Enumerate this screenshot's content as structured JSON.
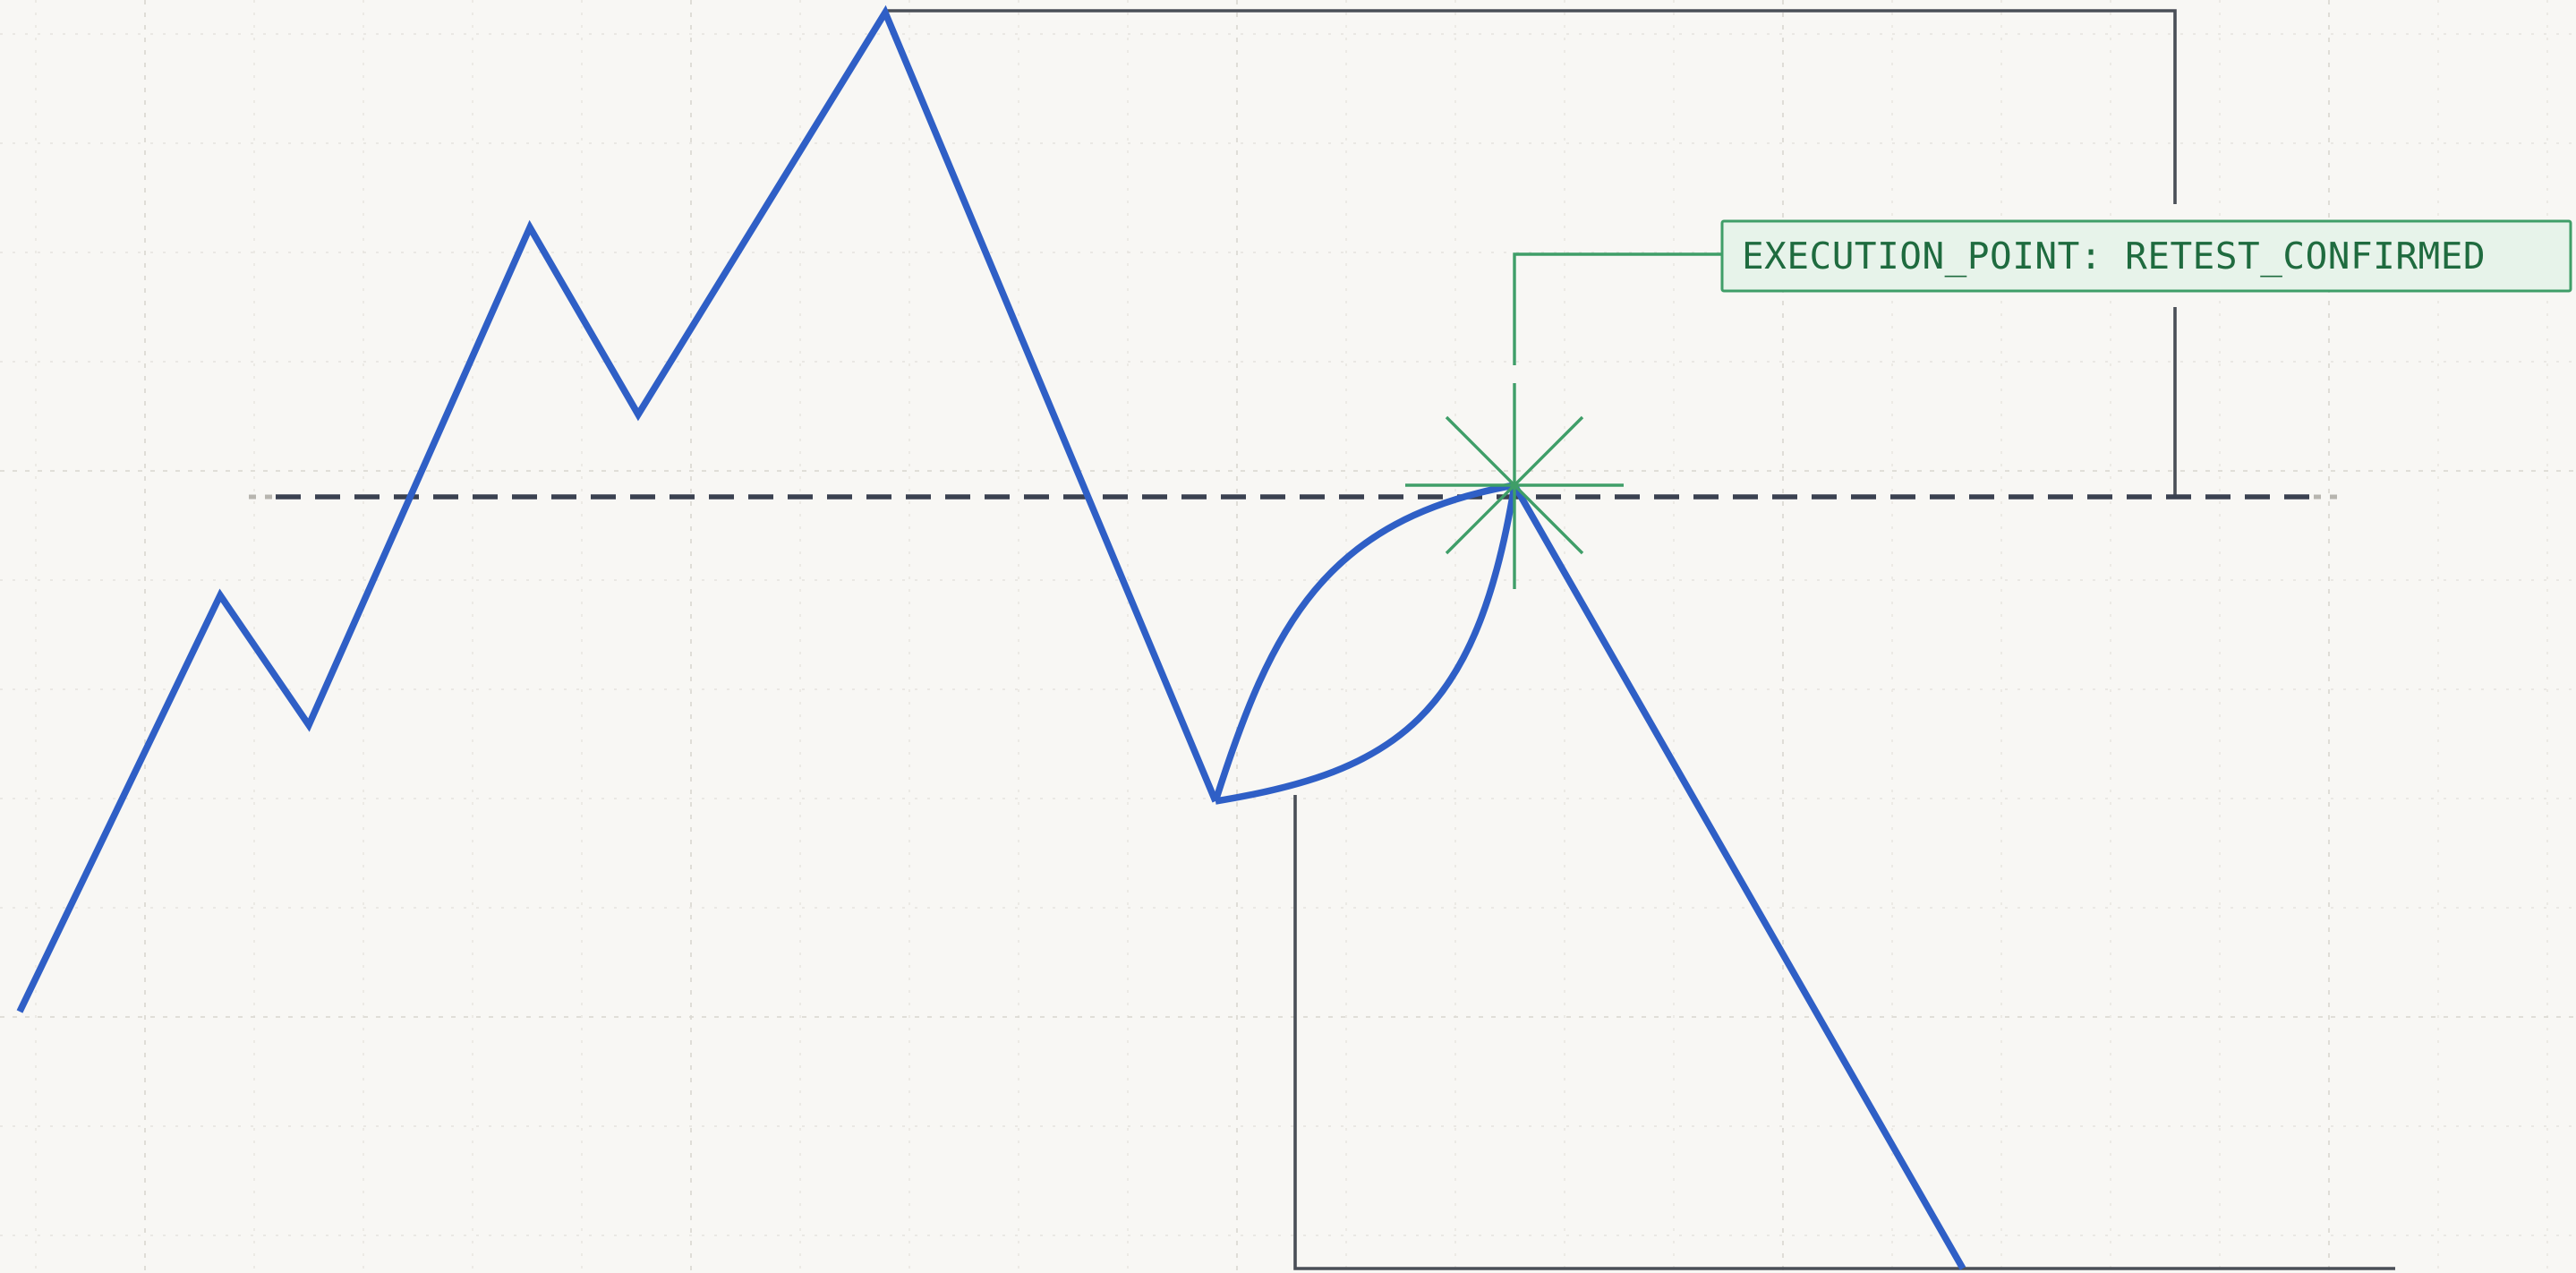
{
  "diagram": {
    "annotation": {
      "label": "EXECUTION_POINT: RETEST_CONFIRMED"
    },
    "colors": {
      "background": "#f8f7f4",
      "price_path": "#2f5fc6",
      "annotation": "#3f9e68",
      "annotation_fill": "#e7f3ea",
      "level_line": "#3a4150",
      "bracket": "#4a4f57",
      "grid": "#e6e4df"
    }
  }
}
